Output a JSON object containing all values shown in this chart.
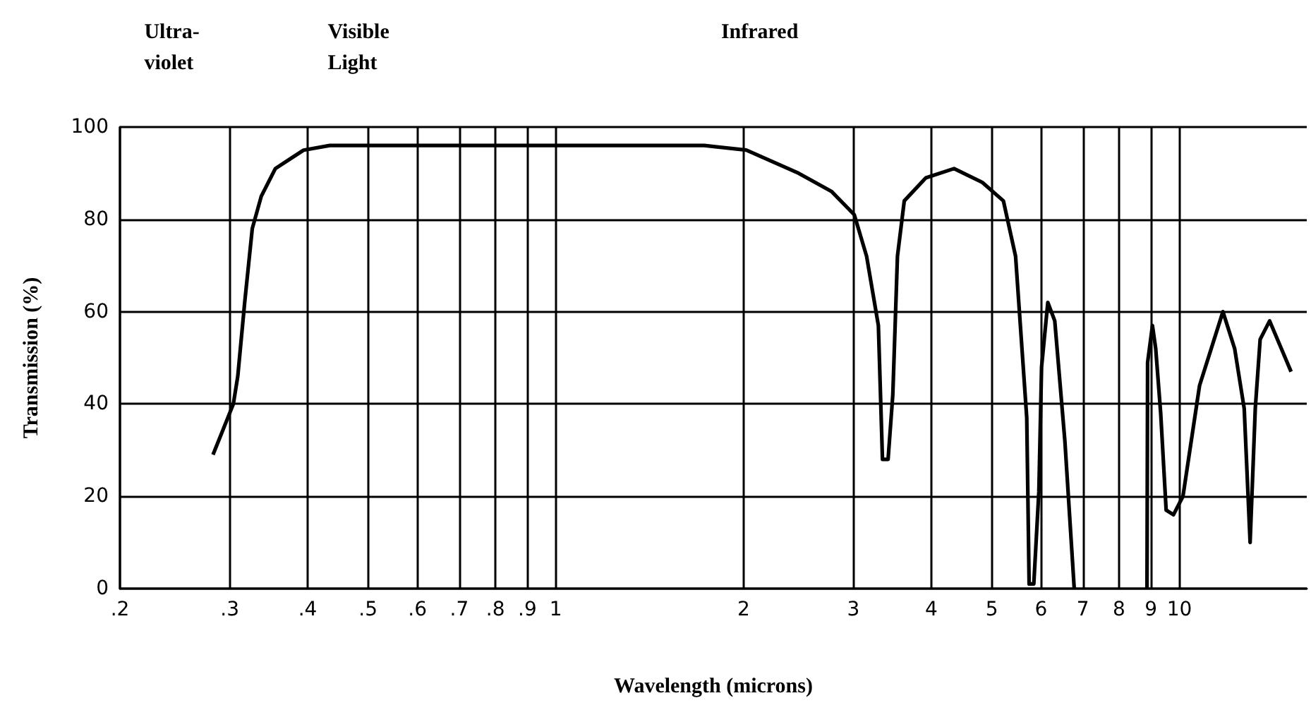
{
  "chart_data": {
    "type": "line",
    "xlabel": "Wavelength (microns)",
    "ylabel": "Transmission (%)",
    "annotations": [
      "Ultra-\nviolet",
      "Visible\nLight",
      "Infrared"
    ],
    "log": "x",
    "grid": true,
    "marker": "none",
    "xlim": [
      0.2,
      16
    ],
    "ylim": [
      0,
      100
    ],
    "xticks": [
      {
        "value": 0.2,
        "label": ".2"
      },
      {
        "value": 0.3,
        "label": ".3"
      },
      {
        "value": 0.4,
        "label": ".4"
      },
      {
        "value": 0.5,
        "label": ".5"
      },
      {
        "value": 0.6,
        "label": ".6"
      },
      {
        "value": 0.7,
        "label": ".7"
      },
      {
        "value": 0.8,
        "label": ".8"
      },
      {
        "value": 0.9,
        "label": ".9"
      },
      1,
      2,
      3,
      4,
      5,
      6,
      7,
      8,
      9,
      10
    ],
    "yticks": [
      0,
      20,
      40,
      60,
      80,
      100
    ],
    "series": [
      {
        "color": "#000000",
        "x": [
          0.282,
          0.304,
          0.309,
          0.317,
          0.326,
          0.337,
          0.355,
          0.374,
          0.394,
          0.434,
          1,
          1.73,
          2.02,
          2.45,
          2.77,
          3.01,
          3.15,
          3.29,
          3.34,
          3.41,
          3.47,
          3.53,
          3.62,
          3.92,
          4.35,
          4.83,
          5.22,
          5.46,
          5.69,
          5.74,
          5.84,
          5.95,
          6.01,
          6.15,
          6.31,
          6.55,
          6.78,
          7.8,
          8.87,
          8.89,
          9.05,
          9.16,
          9.33,
          9.52,
          9.78,
          10.13,
          10.77,
          11.74,
          12.26,
          12.7,
          12.98,
          13.23,
          13.47,
          13.95,
          15.1
        ],
        "values": [
          29,
          40,
          46,
          62,
          78,
          85,
          91,
          93,
          95,
          96,
          96,
          96,
          95,
          90,
          86,
          81,
          72,
          57,
          28,
          28,
          42,
          72,
          84,
          89,
          91,
          88,
          84,
          72,
          37,
          1,
          1,
          21,
          48,
          62,
          58,
          32,
          0,
          null,
          0,
          49,
          57,
          52,
          38,
          17,
          16,
          20,
          44,
          60,
          52,
          39,
          10,
          39,
          54,
          58,
          47
        ]
      }
    ]
  }
}
